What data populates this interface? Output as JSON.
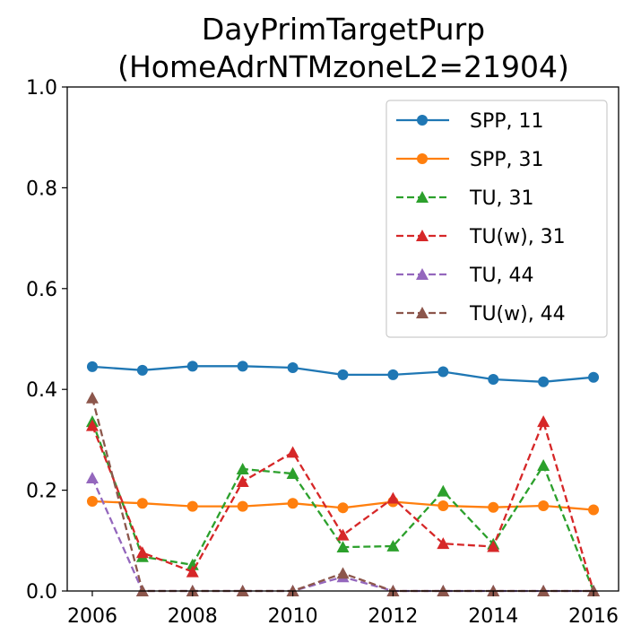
{
  "chart_data": {
    "type": "line",
    "title_lines": [
      "DayPrimTargetPurp",
      "(HomeAdrNTMzoneL2=21904)"
    ],
    "xlabel": "",
    "ylabel": "",
    "xlim": [
      2005.5,
      2016.5
    ],
    "ylim": [
      0.0,
      1.0
    ],
    "x_ticks": [
      2006,
      2008,
      2010,
      2012,
      2014,
      2016
    ],
    "y_ticks": [
      0.0,
      0.2,
      0.4,
      0.6,
      0.8,
      1.0
    ],
    "y_tick_labels": [
      "0.0",
      "0.2",
      "0.4",
      "0.6",
      "0.8",
      "1.0"
    ],
    "grid": false,
    "legend_position": "top-right",
    "x": [
      2006,
      2007,
      2008,
      2009,
      2010,
      2011,
      2012,
      2013,
      2014,
      2015,
      2016
    ],
    "series": [
      {
        "name": "SPP, 11",
        "color": "#1f77b4",
        "linestyle": "solid",
        "marker": "circle",
        "values": [
          0.445,
          0.438,
          0.446,
          0.446,
          0.443,
          0.429,
          0.429,
          0.435,
          0.42,
          0.415,
          0.424
        ]
      },
      {
        "name": "SPP, 31",
        "color": "#ff7f0e",
        "linestyle": "solid",
        "marker": "circle",
        "values": [
          0.178,
          0.174,
          0.168,
          0.168,
          0.174,
          0.165,
          0.177,
          0.169,
          0.166,
          0.169,
          0.161
        ]
      },
      {
        "name": "TU, 31",
        "color": "#2ca02c",
        "linestyle": "dashed",
        "marker": "triangle",
        "values": [
          0.336,
          0.068,
          0.052,
          0.242,
          0.233,
          0.087,
          0.089,
          0.198,
          0.093,
          0.249,
          0.0
        ]
      },
      {
        "name": "TU(w), 31",
        "color": "#d62728",
        "linestyle": "dashed",
        "marker": "triangle",
        "values": [
          0.328,
          0.076,
          0.038,
          0.217,
          0.275,
          0.111,
          0.184,
          0.094,
          0.088,
          0.336,
          0.0
        ]
      },
      {
        "name": "TU, 44",
        "color": "#9467bd",
        "linestyle": "dashed",
        "marker": "triangle",
        "values": [
          0.224,
          0.0,
          0.0,
          0.0,
          0.0,
          0.028,
          0.0,
          0.0,
          0.0,
          0.0,
          0.0
        ]
      },
      {
        "name": "TU(w), 44",
        "color": "#8c564b",
        "linestyle": "dashed",
        "marker": "triangle",
        "values": [
          0.383,
          0.0,
          0.0,
          0.0,
          0.0,
          0.035,
          0.0,
          0.0,
          0.0,
          0.0,
          0.0
        ]
      }
    ]
  }
}
